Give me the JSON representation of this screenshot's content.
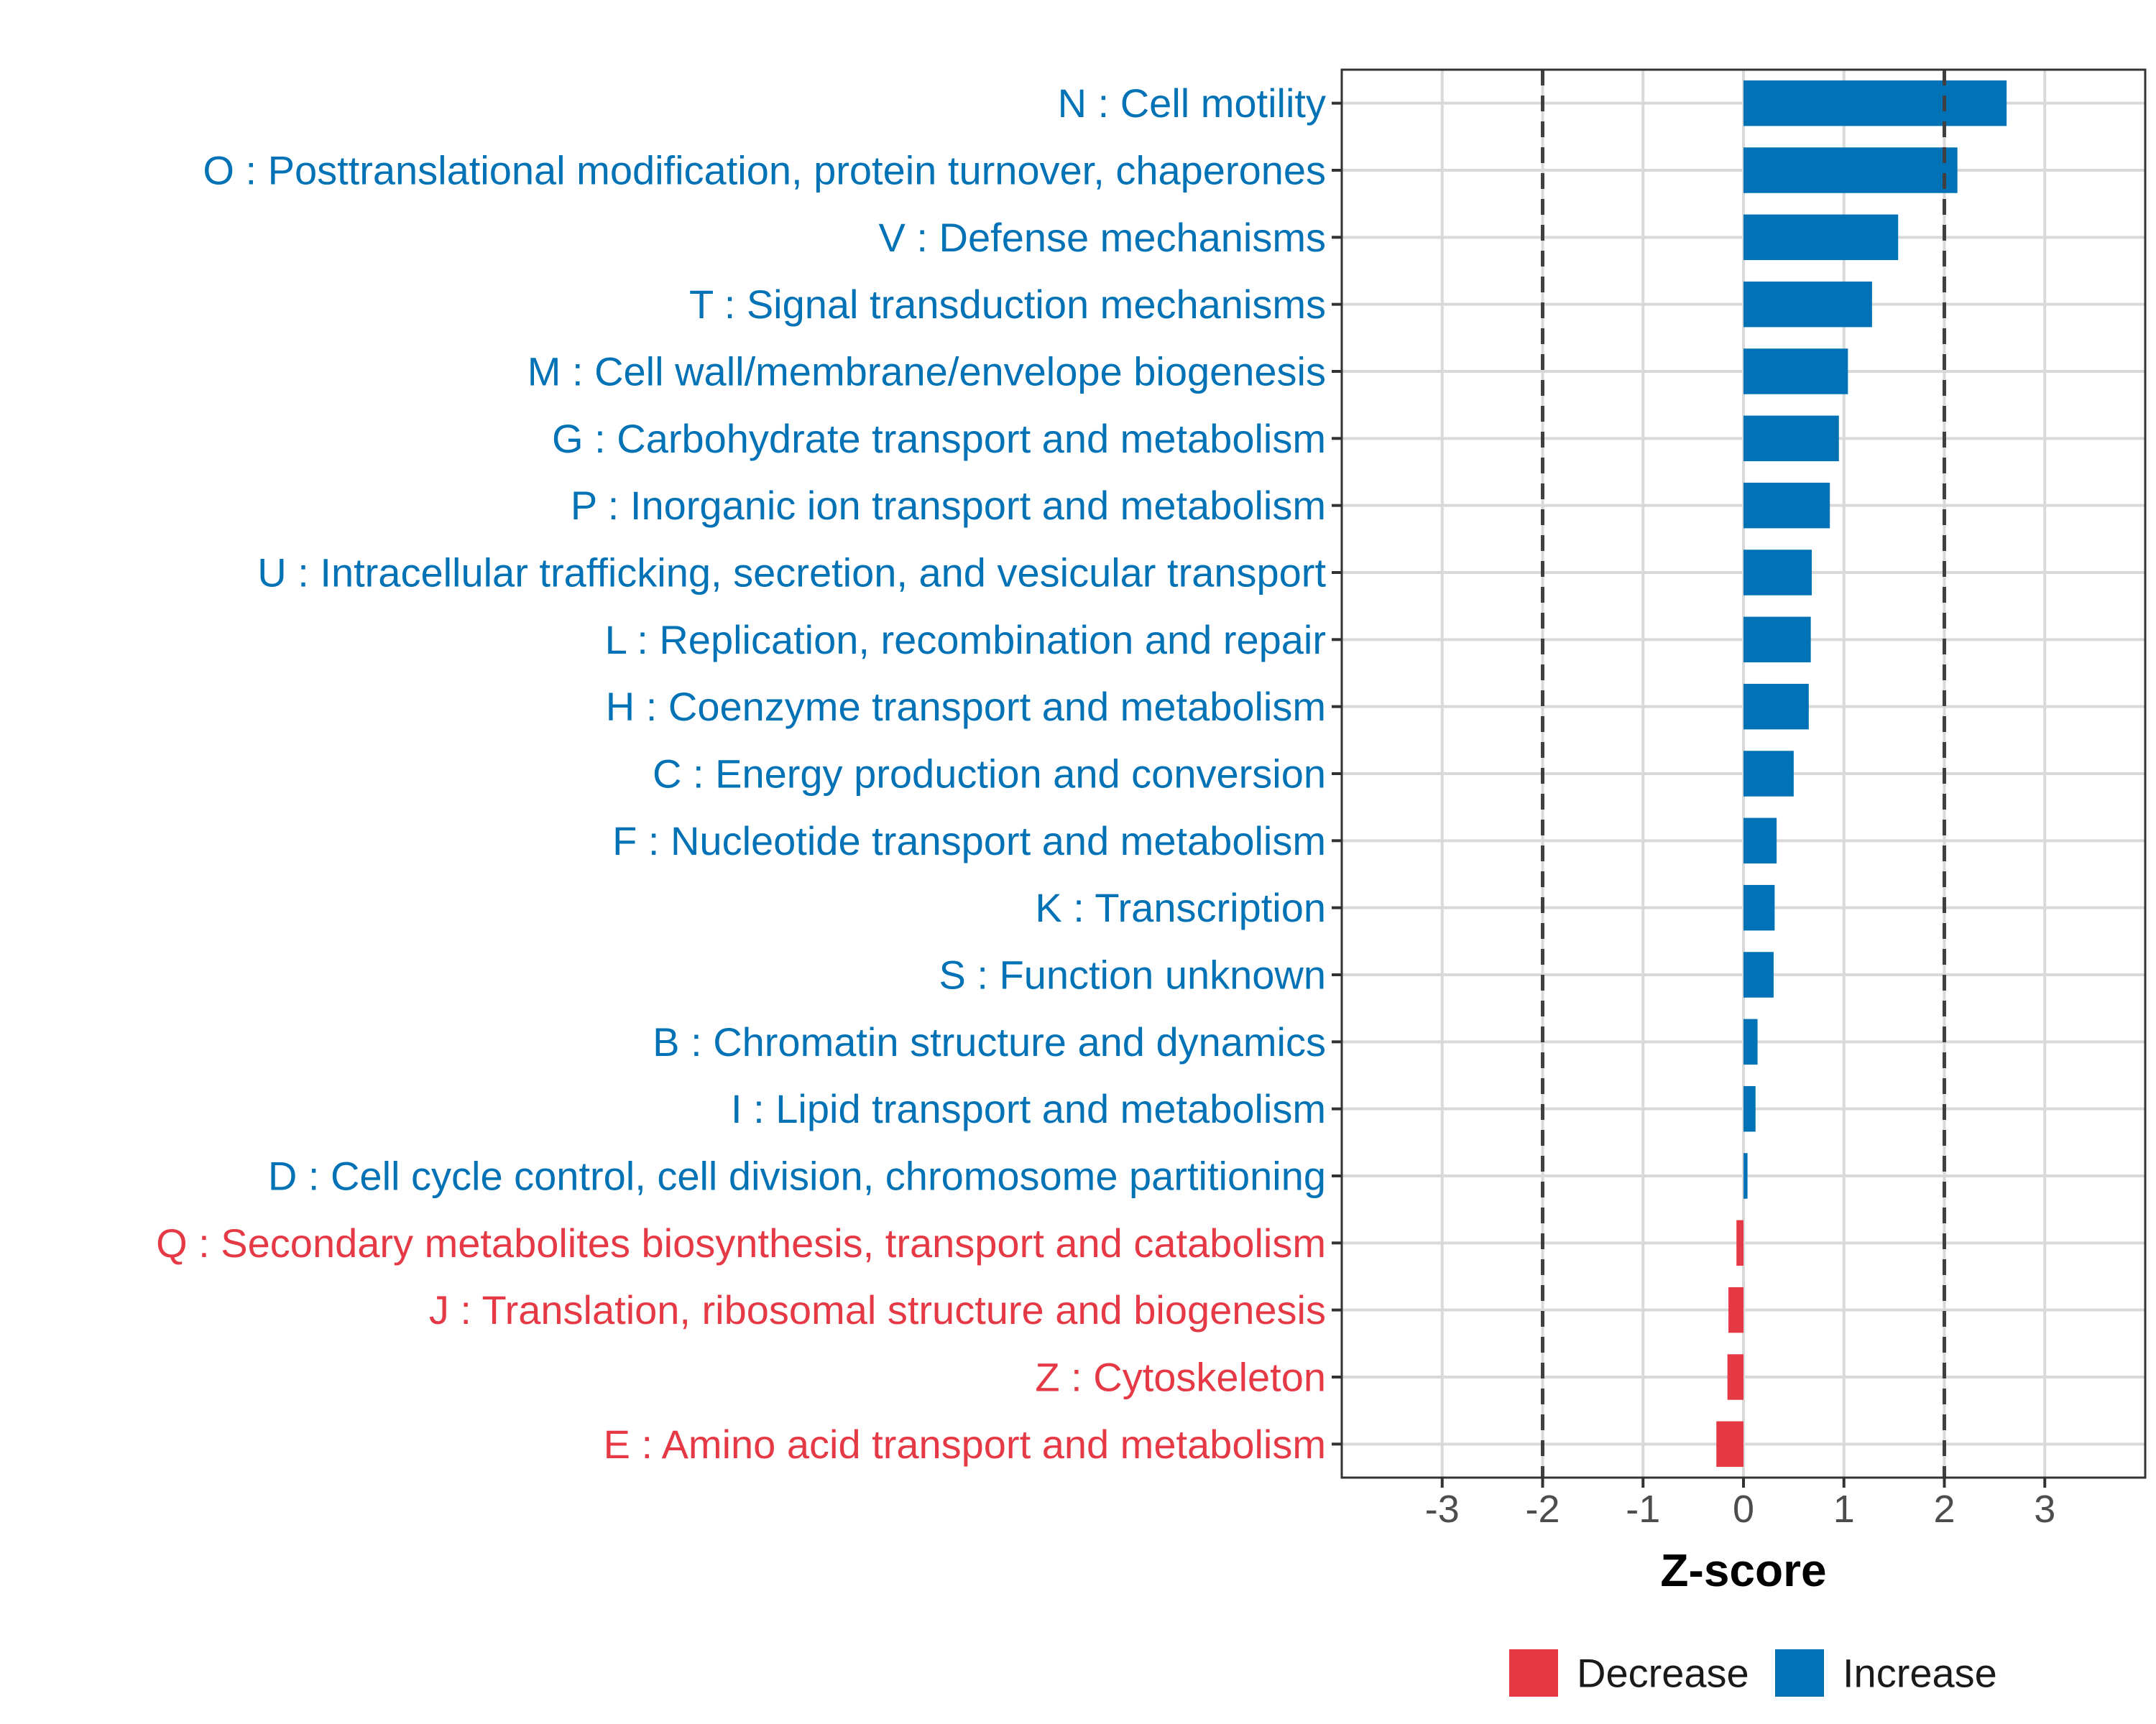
{
  "chart_data": {
    "type": "bar",
    "orientation": "horizontal",
    "xlabel": "Z-score",
    "xlim": [
      -4,
      4
    ],
    "xticks": [
      -3,
      -2,
      -1,
      0,
      1,
      2,
      3
    ],
    "xtick_labels": [
      "-3",
      "-2",
      "-1",
      "0",
      "1",
      "2",
      "3"
    ],
    "reference_lines": [
      -2,
      2
    ],
    "grid": true,
    "colors": {
      "Increase": "#0072B5",
      "Decrease": "#E63946"
    },
    "legend": {
      "position": "bottom",
      "entries": [
        {
          "name": "Decrease",
          "color": "#E63946"
        },
        {
          "name": "Increase",
          "color": "#0072B5"
        }
      ]
    },
    "categories": [
      "N : Cell motility",
      "O : Posttranslational modification, protein turnover, chaperones",
      "V : Defense mechanisms",
      "T : Signal transduction mechanisms",
      "M : Cell wall/membrane/envelope biogenesis",
      "G : Carbohydrate transport and metabolism",
      "P : Inorganic ion transport and metabolism",
      "U : Intracellular trafficking, secretion, and vesicular transport",
      "L : Replication, recombination and repair",
      "H : Coenzyme transport and metabolism",
      "C : Energy production and conversion",
      "F : Nucleotide transport and metabolism",
      "K : Transcription",
      "S : Function unknown",
      "B : Chromatin structure and dynamics",
      "I : Lipid transport and metabolism",
      "D : Cell cycle control, cell division, chromosome partitioning",
      "Q : Secondary metabolites biosynthesis, transport and catabolism",
      "J : Translation, ribosomal structure and biogenesis",
      "Z : Cytoskeleton",
      "E : Amino acid transport and metabolism"
    ],
    "values": [
      2.62,
      2.13,
      1.54,
      1.28,
      1.04,
      0.95,
      0.86,
      0.68,
      0.67,
      0.65,
      0.5,
      0.33,
      0.31,
      0.3,
      0.14,
      0.12,
      0.04,
      -0.07,
      -0.15,
      -0.16,
      -0.27
    ],
    "direction": [
      "Increase",
      "Increase",
      "Increase",
      "Increase",
      "Increase",
      "Increase",
      "Increase",
      "Increase",
      "Increase",
      "Increase",
      "Increase",
      "Increase",
      "Increase",
      "Increase",
      "Increase",
      "Increase",
      "Increase",
      "Decrease",
      "Decrease",
      "Decrease",
      "Decrease"
    ]
  }
}
